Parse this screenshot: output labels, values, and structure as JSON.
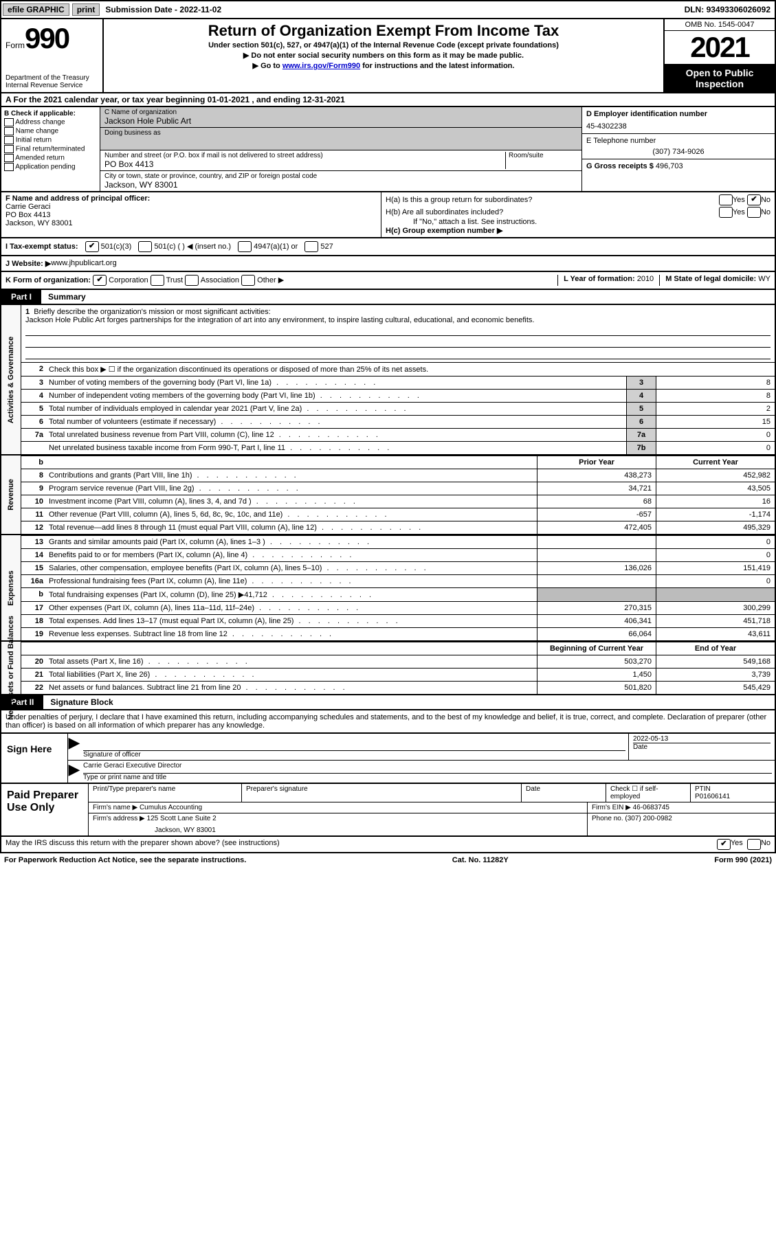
{
  "top": {
    "efile": "efile GRAPHIC",
    "print": "print",
    "sub_label": "Submission Date - ",
    "sub_date": "2022-11-02",
    "dln_label": "DLN: ",
    "dln": "93493306026092"
  },
  "header": {
    "form_word": "Form",
    "form_num": "990",
    "dept": "Department of the Treasury\nInternal Revenue Service",
    "title": "Return of Organization Exempt From Income Tax",
    "sub": "Under section 501(c), 527, or 4947(a)(1) of the Internal Revenue Code (except private foundations)",
    "note1": "▶ Do not enter social security numbers on this form as it may be made public.",
    "note2_prefix": "▶ Go to ",
    "note2_link": "www.irs.gov/Form990",
    "note2_suffix": " for instructions and the latest information.",
    "omb": "OMB No. 1545-0047",
    "year": "2021",
    "open": "Open to Public Inspection"
  },
  "period": "A For the 2021 calendar year, or tax year beginning 01-01-2021   , and ending 12-31-2021",
  "boxB": {
    "label": "B Check if applicable:",
    "items": [
      "Address change",
      "Name change",
      "Initial return",
      "Final return/terminated",
      "Amended return",
      "Application pending"
    ]
  },
  "boxC": {
    "name_label": "C Name of organization",
    "name": "Jackson Hole Public Art",
    "dba_label": "Doing business as",
    "addr_label": "Number and street (or P.O. box if mail is not delivered to street address)",
    "room_label": "Room/suite",
    "addr": "PO Box 4413",
    "city_label": "City or town, state or province, country, and ZIP or foreign postal code",
    "city": "Jackson, WY  83001"
  },
  "boxD": {
    "label": "D Employer identification number",
    "val": "45-4302238"
  },
  "boxE": {
    "label": "E Telephone number",
    "val": "(307) 734-9026"
  },
  "boxG": {
    "label": "G Gross receipts $ ",
    "val": "496,703"
  },
  "boxF": {
    "label": "F  Name and address of principal officer:",
    "name": "Carrie Geraci",
    "addr1": "PO Box 4413",
    "addr2": "Jackson, WY  83001"
  },
  "boxH": {
    "a": "H(a)  Is this a group return for subordinates?",
    "b": "H(b)  Are all subordinates included?",
    "note": "If \"No,\" attach a list. See instructions.",
    "c": "H(c)  Group exemption number ▶",
    "yes": "Yes",
    "no": "No"
  },
  "boxI": {
    "label": "I  Tax-exempt status:",
    "c3": "501(c)(3)",
    "c": "501(c) (  ) ◀ (insert no.)",
    "a1": "4947(a)(1) or",
    "s527": "527"
  },
  "boxJ": {
    "label": "J  Website: ▶ ",
    "val": "www.jhpublicart.org"
  },
  "boxK": {
    "label": "K Form of organization:",
    "corp": "Corporation",
    "trust": "Trust",
    "assoc": "Association",
    "other": "Other ▶"
  },
  "boxL": {
    "label": "L Year of formation: ",
    "val": "2010"
  },
  "boxM": {
    "label": "M State of legal domicile: ",
    "val": "WY"
  },
  "parts": {
    "p1": "Part I",
    "p1t": "Summary",
    "p2": "Part II",
    "p2t": "Signature Block"
  },
  "sides": {
    "ag": "Activities & Governance",
    "rev": "Revenue",
    "exp": "Expenses",
    "na": "Net Assets or Fund Balances"
  },
  "summary": {
    "l1a": "Briefly describe the organization's mission or most significant activities:",
    "l1b": "Jackson Hole Public Art forges partnerships for the integration of art into any environment, to inspire lasting cultural, educational, and economic benefits.",
    "l2": "Check this box ▶ ☐ if the organization discontinued its operations or disposed of more than 25% of its net assets.",
    "rows": [
      {
        "n": "3",
        "d": "Number of voting members of the governing body (Part VI, line 1a)",
        "box": "3",
        "v": "8"
      },
      {
        "n": "4",
        "d": "Number of independent voting members of the governing body (Part VI, line 1b)",
        "box": "4",
        "v": "8"
      },
      {
        "n": "5",
        "d": "Total number of individuals employed in calendar year 2021 (Part V, line 2a)",
        "box": "5",
        "v": "2"
      },
      {
        "n": "6",
        "d": "Total number of volunteers (estimate if necessary)",
        "box": "6",
        "v": "15"
      },
      {
        "n": "7a",
        "d": "Total unrelated business revenue from Part VIII, column (C), line 12",
        "box": "7a",
        "v": "0"
      },
      {
        "n": "",
        "d": "Net unrelated business taxable income from Form 990-T, Part I, line 11",
        "box": "7b",
        "v": "0"
      }
    ],
    "colheads": {
      "b": "b",
      "prior": "Prior Year",
      "cur": "Current Year"
    },
    "rev": [
      {
        "n": "8",
        "d": "Contributions and grants (Part VIII, line 1h)",
        "p": "438,273",
        "c": "452,982"
      },
      {
        "n": "9",
        "d": "Program service revenue (Part VIII, line 2g)",
        "p": "34,721",
        "c": "43,505"
      },
      {
        "n": "10",
        "d": "Investment income (Part VIII, column (A), lines 3, 4, and 7d )",
        "p": "68",
        "c": "16"
      },
      {
        "n": "11",
        "d": "Other revenue (Part VIII, column (A), lines 5, 6d, 8c, 9c, 10c, and 11e)",
        "p": "-657",
        "c": "-1,174"
      },
      {
        "n": "12",
        "d": "Total revenue—add lines 8 through 11 (must equal Part VIII, column (A), line 12)",
        "p": "472,405",
        "c": "495,329"
      }
    ],
    "exp": [
      {
        "n": "13",
        "d": "Grants and similar amounts paid (Part IX, column (A), lines 1–3 )",
        "p": "",
        "c": "0"
      },
      {
        "n": "14",
        "d": "Benefits paid to or for members (Part IX, column (A), line 4)",
        "p": "",
        "c": "0"
      },
      {
        "n": "15",
        "d": "Salaries, other compensation, employee benefits (Part IX, column (A), lines 5–10)",
        "p": "136,026",
        "c": "151,419"
      },
      {
        "n": "16a",
        "d": "Professional fundraising fees (Part IX, column (A), line 11e)",
        "p": "",
        "c": "0"
      },
      {
        "n": "b",
        "d": "Total fundraising expenses (Part IX, column (D), line 25) ▶41,712",
        "p": "SHADE",
        "c": "SHADE"
      },
      {
        "n": "17",
        "d": "Other expenses (Part IX, column (A), lines 11a–11d, 11f–24e)",
        "p": "270,315",
        "c": "300,299"
      },
      {
        "n": "18",
        "d": "Total expenses. Add lines 13–17 (must equal Part IX, column (A), line 25)",
        "p": "406,341",
        "c": "451,718"
      },
      {
        "n": "19",
        "d": "Revenue less expenses. Subtract line 18 from line 12",
        "p": "66,064",
        "c": "43,611"
      }
    ],
    "na_heads": {
      "p": "Beginning of Current Year",
      "c": "End of Year"
    },
    "na": [
      {
        "n": "20",
        "d": "Total assets (Part X, line 16)",
        "p": "503,270",
        "c": "549,168"
      },
      {
        "n": "21",
        "d": "Total liabilities (Part X, line 26)",
        "p": "1,450",
        "c": "3,739"
      },
      {
        "n": "22",
        "d": "Net assets or fund balances. Subtract line 21 from line 20",
        "p": "501,820",
        "c": "545,429"
      }
    ]
  },
  "sig": {
    "intro": "Under penalties of perjury, I declare that I have examined this return, including accompanying schedules and statements, and to the best of my knowledge and belief, it is true, correct, and complete. Declaration of preparer (other than officer) is based on all information of which preparer has any knowledge.",
    "sign_here": "Sign Here",
    "sig_label": "Signature of officer",
    "date_label": "Date",
    "date": "2022-05-13",
    "typed": "Carrie Geraci  Executive Director",
    "typed_label": "Type or print name and title"
  },
  "prep": {
    "left": "Paid Preparer Use Only",
    "h_name": "Print/Type preparer's name",
    "h_sig": "Preparer's signature",
    "h_date": "Date",
    "h_self": "Check ☐ if self-employed",
    "h_ptin": "PTIN",
    "ptin": "P01606141",
    "firm_name_l": "Firm's name   ▶",
    "firm_name": "Cumulus Accounting",
    "firm_ein_l": "Firm's EIN ▶",
    "firm_ein": "46-0683745",
    "firm_addr_l": "Firm's address ▶",
    "firm_addr1": "125 Scott Lane Suite 2",
    "firm_addr2": "Jackson, WY  83001",
    "phone_l": "Phone no.",
    "phone": "(307) 200-0982"
  },
  "discuss": "May the IRS discuss this return with the preparer shown above? (see instructions)",
  "footer": {
    "pra": "For Paperwork Reduction Act Notice, see the separate instructions.",
    "cat": "Cat. No. 11282Y",
    "form": "Form 990 (2021)"
  }
}
